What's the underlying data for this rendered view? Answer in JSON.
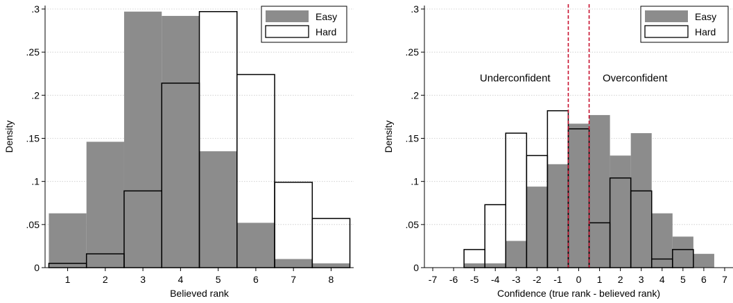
{
  "chart_data": [
    {
      "type": "bar",
      "title": "",
      "xlabel": "Believed rank",
      "ylabel": "Density",
      "xlim": [
        0.4,
        8.6
      ],
      "ylim": [
        0,
        0.3
      ],
      "xticks": [
        "1",
        "2",
        "3",
        "4",
        "5",
        "6",
        "7",
        "8"
      ],
      "yticks": [
        "0",
        ".05",
        ".1",
        ".15",
        ".2",
        ".25",
        ".3"
      ],
      "grid": true,
      "legend_position": "top-right",
      "colors": {
        "easy": "#8c8c8c",
        "hard": "#ffffff",
        "outline": "#000000"
      },
      "categories": [
        1,
        2,
        3,
        4,
        5,
        6,
        7,
        8
      ],
      "series": [
        {
          "name": "Easy",
          "style": "filled",
          "values": [
            0.063,
            0.146,
            0.297,
            0.292,
            0.135,
            0.052,
            0.01,
            0.005
          ]
        },
        {
          "name": "Hard",
          "style": "outline",
          "values": [
            0.005,
            0.016,
            0.089,
            0.214,
            0.297,
            0.224,
            0.099,
            0.057
          ]
        }
      ]
    },
    {
      "type": "bar",
      "title": "",
      "xlabel": "Confidence (true rank - believed rank)",
      "ylabel": "Density",
      "xlim": [
        -7.4,
        7.4
      ],
      "ylim": [
        0,
        0.3
      ],
      "xticks": [
        "-7",
        "-6",
        "-5",
        "-4",
        "-3",
        "-2",
        "-1",
        "0",
        "1",
        "2",
        "3",
        "4",
        "5",
        "6",
        "7"
      ],
      "yticks": [
        "0",
        ".05",
        ".1",
        ".15",
        ".2",
        ".25",
        ".3"
      ],
      "grid": true,
      "legend_position": "top-right",
      "colors": {
        "easy": "#8c8c8c",
        "hard": "#ffffff",
        "outline": "#000000",
        "reference": "#c8102e"
      },
      "categories": [
        -5,
        -4,
        -3,
        -2,
        -1,
        0,
        1,
        2,
        3,
        4,
        5,
        6
      ],
      "series": [
        {
          "name": "Easy",
          "style": "filled",
          "values": [
            0.005,
            0.005,
            0.031,
            0.094,
            0.12,
            0.167,
            0.177,
            0.13,
            0.156,
            0.063,
            0.036,
            0.016
          ]
        },
        {
          "name": "Hard",
          "style": "outline",
          "values": [
            0.021,
            0.073,
            0.156,
            0.13,
            0.182,
            0.161,
            0.052,
            0.104,
            0.089,
            0.01,
            0.021,
            0.0
          ]
        }
      ],
      "reference_lines": [
        -0.5,
        0.5
      ],
      "annotations": [
        {
          "text": "Underconfident",
          "x": -3.05,
          "y": 0.22
        },
        {
          "text": "Overconfident",
          "x": 2.7,
          "y": 0.22
        }
      ]
    }
  ]
}
